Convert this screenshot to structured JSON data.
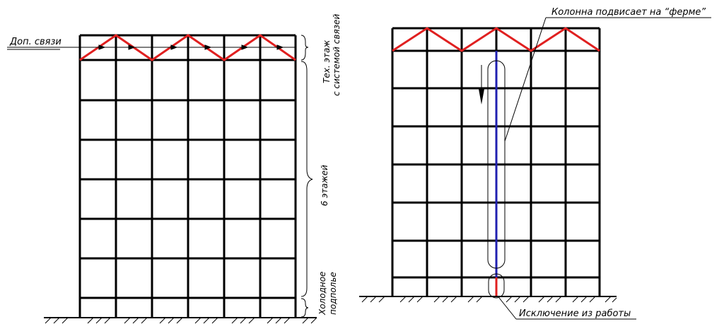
{
  "labels": {
    "additional_bracing": "Доп. связи",
    "tech_floor_line1": "Тех. этаж",
    "tech_floor_line2": "с системой связей",
    "six_floors": "6 этажей",
    "cold_underground_line1": "Холодное",
    "cold_underground_line2": "подполье",
    "column_hangs": "Колонна подвисает на “ферме”",
    "exclusion": "Исключение из работы"
  },
  "colors": {
    "frame": "#000000",
    "truss": "#e02020",
    "hanging_column": "#2020b0",
    "excluded_segment": "#e02020"
  },
  "icons": {
    "direction": "arrow-down-icon",
    "ground": "ground-hatching-icon"
  }
}
